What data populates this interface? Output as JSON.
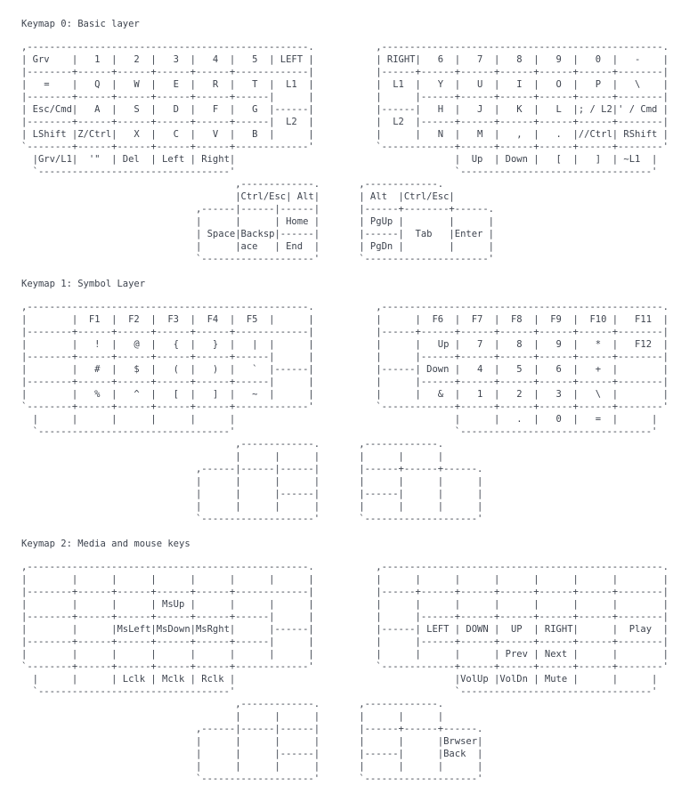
{
  "page": {
    "background_color": "#ffffff",
    "text_color": "#3d434e"
  },
  "document": {
    "sections": [
      {
        "title": "Keymap 0: Basic layer",
        "ascii_art": [
          ",--------------------------------------------------.           ,--------------------------------------------------.",
          "| Grv    |   1  |   2  |   3  |   4  |   5  | LEFT |           | RIGHT|   6  |   7  |   8  |   9  |   0  |   -    |",
          "|--------+------+------+------+------+-------------|           |------+------+------+------+------+------+--------|",
          "|   =    |   Q  |   W  |   E  |   R  |   T  |  L1  |           |  L1  |   Y  |   U  |   I  |   O  |   P  |   \\    |",
          "|--------+------+------+------+------+------|      |           |      |------+------+------+------+------+--------|",
          "| Esc/Cmd|   A  |   S  |   D  |   F  |   G  |------|           |------|   H  |   J  |   K  |   L  |; / L2|' / Cmd |",
          "|--------+------+------+------+------+------|  L2  |           |  L2  |------+------+------+------+------+--------|",
          "| LShift |Z/Ctrl|   X  |   C  |   V  |   B  |      |           |      |   N  |   M  |   ,  |   .  |//Ctrl| RShift |",
          "`--------+------+------+------+------+-------------'           `-------------+------+------+------+------+--------'",
          "  |Grv/L1|  '\"  | Del  | Left | Right|                                       |  Up  | Down |   [  |   ]  | ~L1  |",
          "  `----------------------------------'                                       `----------------------------------'",
          "                                      ,-------------.       ,-------------.",
          "                                      |Ctrl/Esc| Alt|       | Alt  |Ctrl/Esc|",
          "                               ,------|------|------|       |------+--------+------.",
          "                               |      |      | Home |       | PgUp |        |      |",
          "                               | Space|Backsp|------|       |------|  Tab   |Enter |",
          "                               |      |ace   | End  |       | PgDn |        |      |",
          "                               `--------------------'       `----------------------'"
        ]
      },
      {
        "title": "Keymap 1: Symbol Layer",
        "ascii_art": [
          ",--------------------------------------------------.           ,--------------------------------------------------.",
          "|        |  F1  |  F2  |  F3  |  F4  |  F5  |      |           |      |  F6  |  F7  |  F8  |  F9  |  F10 |   F11  |",
          "|--------+------+------+------+------+-------------|           |------+------+------+------+------+------+--------|",
          "|        |   !  |   @  |   {  |   }  |   |  |      |           |      |   Up |   7  |   8  |   9  |   *  |   F12  |",
          "|--------+------+------+------+------+------|      |           |      |------+------+------+------+------+--------|",
          "|        |   #  |   $  |   (  |   )  |   `  |------|           |------| Down |   4  |   5  |   6  |   +  |        |",
          "|--------+------+------+------+------+------|      |           |      |------+------+------+------+------+--------|",
          "|        |   %  |   ^  |   [  |   ]  |   ~  |      |           |      |   &  |   1  |   2  |   3  |   \\  |        |",
          "`--------+------+------+------+------+-------------'           `-------------+------+------+------+------+--------'",
          "  |      |      |      |      |      |                                       |      |   .  |   0  |   =  |      |",
          "  `----------------------------------'                                       `----------------------------------'",
          "                                      ,-------------.       ,-------------.",
          "                                      |      |      |       |      |      |",
          "                               ,------|------|------|       |------+------+------.",
          "                               |      |      |      |       |      |      |      |",
          "                               |      |      |------|       |------|      |      |",
          "                               |      |      |      |       |      |      |      |",
          "                               `--------------------'       `--------------------'"
        ]
      },
      {
        "title": "Keymap 2: Media and mouse keys",
        "ascii_art": [
          ",--------------------------------------------------.           ,--------------------------------------------------.",
          "|        |      |      |      |      |      |      |           |      |      |      |      |      |      |        |",
          "|--------+------+------+------+------+-------------|           |------+------+------+------+------+------+--------|",
          "|        |      |      | MsUp |      |      |      |           |      |      |      |      |      |      |        |",
          "|--------+------+------+------+------+------|      |           |      |------+------+------+------+------+--------|",
          "|        |      |MsLeft|MsDown|MsRght|      |------|           |------| LEFT | DOWN |  UP  | RIGHT|      |  Play  |",
          "|--------+------+------+------+------+------|      |           |      |------+------+------+------+------+--------|",
          "|        |      |      |      |      |      |      |           |      |      |      | Prev | Next |      |        |",
          "`--------+------+------+------+------+-------------'           `-------------+------+------+------+------+--------'",
          "  |      |      | Lclk | Mclk | Rclk |                                       |VolUp |VolDn | Mute |      |      |",
          "  `----------------------------------'                                       `----------------------------------'",
          "                                      ,-------------.       ,-------------.",
          "                                      |      |      |       |      |      |",
          "                               ,------|------|------|       |------+------+------.",
          "                               |      |      |      |       |      |      |Brwser|",
          "                               |      |      |------|       |------|      |Back  |",
          "                               |      |      |      |       |      |      |      |",
          "                               `--------------------'       `--------------------'"
        ]
      }
    ]
  }
}
